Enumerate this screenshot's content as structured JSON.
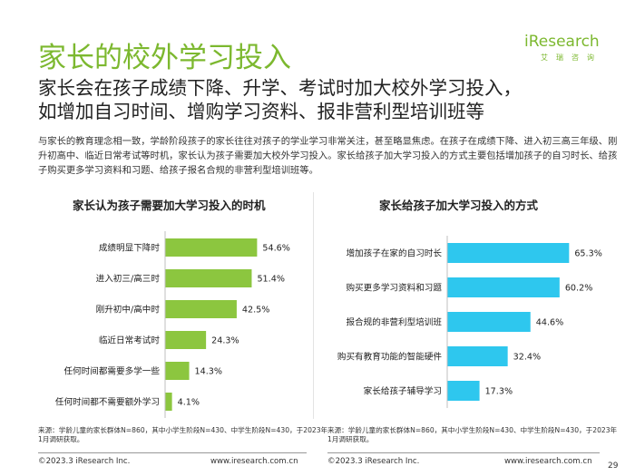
{
  "page": {
    "title": "家长的校外学习投入",
    "headline_line1": "家长会在孩子成绩下降、升学、考试时加大校外学习投入，",
    "headline_line2": "如增加自习时间、增购学习资料、报非营利型培训班等",
    "body": "与家长的教育理念相一致，学龄阶段孩子的家长往往对孩子的学业学习非常关注，甚至略显焦虑。在孩子在成绩下降、进入初三高三年级、刚升初高中、临近日常考试等时机，家长认为孩子需要加大校外学习投入。家长给孩子加大学习投入的方式主要包括增加孩子的自习时长、给孩子购买更多学习资料和习题、给孩子报名合规的非营利型培训班等。",
    "page_number": "29"
  },
  "logo": {
    "brand": "iResearch",
    "sub": "艾瑞咨询"
  },
  "colors": {
    "accent_green": "#7cb82f",
    "bar_green": "#8cc63f",
    "bar_blue": "#2ec7ee"
  },
  "chart_data": [
    {
      "type": "bar",
      "orientation": "horizontal",
      "title": "家长认为孩子需要加大学习投入的时机",
      "categories": [
        "成绩明显下降时",
        "进入初三/高三时",
        "刚升初中/高中时",
        "临近日常考试时",
        "任何时间都需要多学一些",
        "任何时间都不需要额外学习"
      ],
      "values": [
        54.6,
        51.4,
        42.5,
        24.3,
        14.3,
        4.1
      ],
      "value_labels": [
        "54.6%",
        "51.4%",
        "42.5%",
        "24.3%",
        "14.3%",
        "4.1%"
      ],
      "unit": "%",
      "color": "#8cc63f"
    },
    {
      "type": "bar",
      "orientation": "horizontal",
      "title": "家长给孩子加大学习投入的方式",
      "categories": [
        "增加孩子在家的自习时长",
        "购买更多学习资料和习题",
        "报合规的非营利型培训班",
        "购买有教育功能的智能硬件",
        "家长给孩子辅导学习"
      ],
      "values": [
        65.3,
        60.2,
        44.6,
        32.4,
        17.3
      ],
      "value_labels": [
        "65.3%",
        "60.2%",
        "44.6%",
        "32.4%",
        "17.3%"
      ],
      "unit": "%",
      "color": "#2ec7ee"
    }
  ],
  "footer": {
    "source_left": "来源：学龄儿童的家长群体N=860，其中小学生阶段N=430、中学生阶段N=430，于2023年1月调研获取。",
    "source_right": "来源：学龄儿童的家长群体N=860，其中小学生阶段N=430、中学生阶段N=430，于2023年1月调研获取。",
    "copyright_left": "©2023.3 iResearch Inc.",
    "url_left": "www.iresearch.com.cn",
    "copyright_right": "©2023.3 iResearch Inc.",
    "url_right": "www.iresearch.com.cn"
  }
}
